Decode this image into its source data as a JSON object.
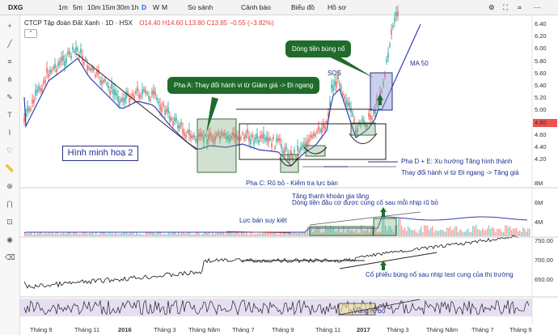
{
  "toolbar": {
    "symbol": "DXG",
    "intervals": [
      "1m",
      "5m",
      "10m",
      "15m",
      "30m",
      "1h",
      "D",
      "W",
      "M"
    ],
    "active_interval": "D",
    "compare": "So sánh",
    "alerts": "Cảnh báo",
    "chart_style": "Biểu đồ",
    "profile": "Hồ sơ"
  },
  "header": {
    "title": "CTCP Tập đoàn Đất Xanh · 1D · HSX",
    "o": "O14.40",
    "h": "H14.60",
    "l": "L13.80",
    "c": "C13.85",
    "change": "−0.55 (−3.82%)"
  },
  "price_axis": [
    "6.40",
    "6.20",
    "6.00",
    "5.80",
    "5.60",
    "5.40",
    "5.20",
    "5.00",
    "4.80",
    "4.60",
    "4.40",
    "4.20"
  ],
  "volume_axis": [
    "8M",
    "6M",
    "4M"
  ],
  "index_axis": [
    "750.00",
    "700.00",
    "650.00"
  ],
  "time_axis": [
    "Tháng 9",
    "Tháng 11",
    "2016",
    "Tháng 3",
    "Tháng Năm",
    "Tháng 7",
    "Tháng 9",
    "Tháng 11",
    "2017",
    "Tháng 3",
    "Tháng Năm",
    "Tháng 7",
    "Tháng 9"
  ],
  "annotations": {
    "hinh": "Hình minh hoạ 2",
    "pha_a": "Pha A: Thay đổi hành vi từ Giảm giá -> Đi ngang",
    "dong_tien": "Dòng tiền bùng nổ",
    "sos": "SOS",
    "ma50": "MA 50",
    "pha_c": "Pha C: Rũ bỏ - Kiểm tra lực bán",
    "pha_de_1": "Pha D + E: Xu hướng Tăng hình thành",
    "pha_de_2": "Thay đổi hành vi từ Đi ngang -> Tăng giá",
    "tang_thanh_khoan_1": "Tăng thanh khoản gia tăng",
    "tang_thanh_khoan_2": "Dòng tiền đầu cơ được củng cố sau mỗi nhịp rũ bỏ",
    "luc_ban": "Lực bán suy kiệt",
    "co_phieu": "Cổ phiếu bùng nổ sau nhịp test cung của thị trường",
    "vung_ru_bo": "Vùng rũ bỏ"
  }
}
